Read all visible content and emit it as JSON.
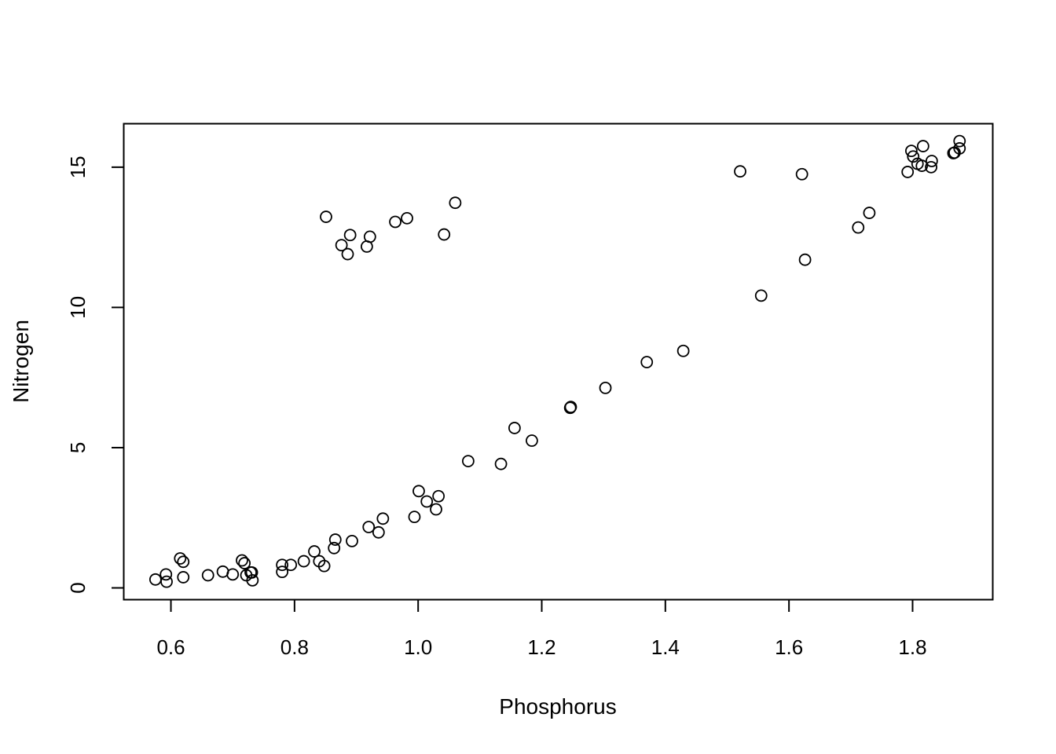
{
  "chart_data": {
    "type": "scatter",
    "title": "",
    "xlabel": "Phosphorus",
    "ylabel": "Nitrogen",
    "xlim": [
      0.5237,
      1.9297
    ],
    "ylim": [
      -0.42,
      16.55
    ],
    "xticks": [
      0.6,
      0.8,
      1.0,
      1.2,
      1.4,
      1.6,
      1.8
    ],
    "xtick_labels": [
      "0.6",
      "0.8",
      "1.0",
      "1.2",
      "1.4",
      "1.6",
      "1.8"
    ],
    "yticks": [
      0,
      5,
      10,
      15
    ],
    "ytick_labels": [
      "0",
      "5",
      "10",
      "15"
    ],
    "grid": false,
    "marker": "open-circle",
    "series": [
      {
        "points": [
          [
            0.575,
            0.3
          ],
          [
            0.592,
            0.48
          ],
          [
            0.593,
            0.22
          ],
          [
            0.615,
            1.05
          ],
          [
            0.62,
            0.93
          ],
          [
            0.62,
            0.38
          ],
          [
            0.66,
            0.45
          ],
          [
            0.684,
            0.58
          ],
          [
            0.7,
            0.48
          ],
          [
            0.715,
            0.98
          ],
          [
            0.719,
            0.88
          ],
          [
            0.722,
            0.45
          ],
          [
            0.729,
            0.55
          ],
          [
            0.731,
            0.55
          ],
          [
            0.732,
            0.27
          ],
          [
            0.78,
            0.82
          ],
          [
            0.78,
            0.57
          ],
          [
            0.794,
            0.82
          ],
          [
            0.815,
            0.95
          ],
          [
            0.832,
            1.3
          ],
          [
            0.84,
            0.95
          ],
          [
            0.848,
            0.78
          ],
          [
            0.864,
            1.42
          ],
          [
            0.866,
            1.72
          ],
          [
            0.893,
            1.67
          ],
          [
            0.92,
            2.17
          ],
          [
            0.936,
            1.98
          ],
          [
            0.943,
            2.47
          ],
          [
            0.994,
            2.53
          ],
          [
            1.001,
            3.45
          ],
          [
            1.014,
            3.08
          ],
          [
            1.029,
            2.8
          ],
          [
            1.033,
            3.27
          ],
          [
            1.081,
            4.52
          ],
          [
            1.134,
            4.42
          ],
          [
            1.156,
            5.7
          ],
          [
            1.184,
            5.25
          ],
          [
            1.246,
            6.42
          ],
          [
            1.247,
            6.45
          ],
          [
            1.303,
            7.13
          ],
          [
            1.37,
            8.05
          ],
          [
            1.429,
            8.45
          ],
          [
            1.555,
            10.42
          ],
          [
            1.626,
            11.7
          ],
          [
            1.712,
            12.85
          ],
          [
            1.73,
            13.37
          ],
          [
            0.851,
            13.23
          ],
          [
            0.876,
            12.22
          ],
          [
            0.886,
            11.9
          ],
          [
            0.89,
            12.58
          ],
          [
            0.917,
            12.17
          ],
          [
            0.922,
            12.52
          ],
          [
            0.963,
            13.05
          ],
          [
            0.982,
            13.18
          ],
          [
            1.042,
            12.6
          ],
          [
            1.06,
            13.73
          ],
          [
            1.521,
            14.85
          ],
          [
            1.621,
            14.75
          ],
          [
            1.792,
            14.83
          ],
          [
            1.798,
            15.58
          ],
          [
            1.801,
            15.38
          ],
          [
            1.808,
            15.12
          ],
          [
            1.815,
            15.05
          ],
          [
            1.817,
            15.75
          ],
          [
            1.83,
            15.0
          ],
          [
            1.831,
            15.22
          ],
          [
            1.866,
            15.5
          ],
          [
            1.868,
            15.52
          ],
          [
            1.876,
            15.67
          ],
          [
            1.876,
            15.93
          ]
        ]
      }
    ]
  }
}
